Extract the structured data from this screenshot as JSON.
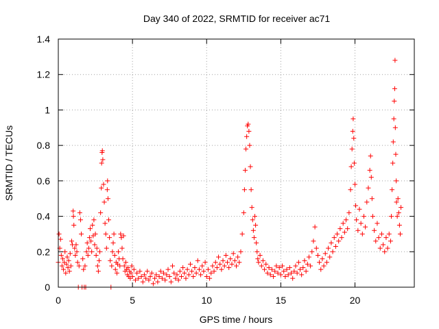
{
  "chart_data": {
    "type": "scatter",
    "title": "Day 340 of 2022, SRMTID for receiver ac71",
    "xlabel": "GPS time / hours",
    "ylabel": "SRMTID / TECUs",
    "xlim": [
      0,
      24
    ],
    "ylim": [
      0,
      1.4
    ],
    "xticks": [
      0,
      5,
      10,
      15,
      20
    ],
    "yticks": [
      0,
      0.2,
      0.4,
      0.6,
      0.8,
      1,
      1.2,
      1.4
    ],
    "xtick_labels": [
      "0",
      "5",
      "10",
      "15",
      "20"
    ],
    "ytick_labels": [
      "0",
      "0.2",
      "0.4",
      "0.6",
      "0.8",
      "1",
      "1.2",
      "1.4"
    ],
    "grid": true,
    "marker": "+",
    "color": "#ff0000",
    "series": [
      {
        "name": "SRMTID",
        "points": [
          [
            0.0,
            0.14
          ],
          [
            0.05,
            0.3
          ],
          [
            0.1,
            0.22
          ],
          [
            0.15,
            0.27
          ],
          [
            0.2,
            0.18
          ],
          [
            0.25,
            0.12
          ],
          [
            0.3,
            0.16
          ],
          [
            0.35,
            0.1
          ],
          [
            0.4,
            0.14
          ],
          [
            0.45,
            0.2
          ],
          [
            0.5,
            0.08
          ],
          [
            0.55,
            0.13
          ],
          [
            0.6,
            0.17
          ],
          [
            0.65,
            0.11
          ],
          [
            0.7,
            0.15
          ],
          [
            0.75,
            0.09
          ],
          [
            0.8,
            0.19
          ],
          [
            0.85,
            0.12
          ],
          [
            0.9,
            0.26
          ],
          [
            0.95,
            0.24
          ],
          [
            1.0,
            0.43
          ],
          [
            1.02,
            0.4
          ],
          [
            1.05,
            0.35
          ],
          [
            1.1,
            0.22
          ],
          [
            1.15,
            0.18
          ],
          [
            1.2,
            0.24
          ],
          [
            1.25,
            0.2
          ],
          [
            1.3,
            0.14
          ],
          [
            1.35,
            0.0
          ],
          [
            1.4,
            0.12
          ],
          [
            1.45,
            0.42
          ],
          [
            1.5,
            0.38
          ],
          [
            1.55,
            0.3
          ],
          [
            1.6,
            0.0
          ],
          [
            1.65,
            0.16
          ],
          [
            1.7,
            0.1
          ],
          [
            1.75,
            0.0
          ],
          [
            1.8,
            0.12
          ],
          [
            1.85,
            0.0
          ],
          [
            1.9,
            0.2
          ],
          [
            1.95,
            0.25
          ],
          [
            2.0,
            0.18
          ],
          [
            2.05,
            0.22
          ],
          [
            2.1,
            0.28
          ],
          [
            2.15,
            0.33
          ],
          [
            2.2,
            0.26
          ],
          [
            2.25,
            0.2
          ],
          [
            2.3,
            0.35
          ],
          [
            2.35,
            0.29
          ],
          [
            2.4,
            0.38
          ],
          [
            2.45,
            0.24
          ],
          [
            2.5,
            0.3
          ],
          [
            2.55,
            0.18
          ],
          [
            2.6,
            0.22
          ],
          [
            2.65,
            0.12
          ],
          [
            2.7,
            0.09
          ],
          [
            2.75,
            0.15
          ],
          [
            2.8,
            0.2
          ],
          [
            2.85,
            0.42
          ],
          [
            2.9,
            0.56
          ],
          [
            2.92,
            0.7
          ],
          [
            2.95,
            0.76
          ],
          [
            2.97,
            0.77
          ],
          [
            3.0,
            0.72
          ],
          [
            3.05,
            0.58
          ],
          [
            3.1,
            0.48
          ],
          [
            3.15,
            0.36
          ],
          [
            3.2,
            0.3
          ],
          [
            3.25,
            0.22
          ],
          [
            3.3,
            0.55
          ],
          [
            3.32,
            0.6
          ],
          [
            3.35,
            0.5
          ],
          [
            3.4,
            0.38
          ],
          [
            3.45,
            0.28
          ],
          [
            3.5,
            0.15
          ],
          [
            3.55,
            0.0
          ],
          [
            3.6,
            0.12
          ],
          [
            3.65,
            0.2
          ],
          [
            3.7,
            0.25
          ],
          [
            3.75,
            0.3
          ],
          [
            3.8,
            0.18
          ],
          [
            3.85,
            0.1
          ],
          [
            3.9,
            0.14
          ],
          [
            3.95,
            0.08
          ],
          [
            4.0,
            0.13
          ],
          [
            4.05,
            0.2
          ],
          [
            4.1,
            0.16
          ],
          [
            4.15,
            0.12
          ],
          [
            4.2,
            0.3
          ],
          [
            4.25,
            0.28
          ],
          [
            4.3,
            0.22
          ],
          [
            4.35,
            0.16
          ],
          [
            4.4,
            0.29
          ],
          [
            4.45,
            0.12
          ],
          [
            4.5,
            0.09
          ],
          [
            4.55,
            0.14
          ],
          [
            4.6,
            0.1
          ],
          [
            4.65,
            0.07
          ],
          [
            4.7,
            0.11
          ],
          [
            4.75,
            0.06
          ],
          [
            4.8,
            0.09
          ],
          [
            4.85,
            0.05
          ],
          [
            4.9,
            0.08
          ],
          [
            4.95,
            0.12
          ],
          [
            5.0,
            0.06
          ],
          [
            5.1,
            0.1
          ],
          [
            5.2,
            0.04
          ],
          [
            5.3,
            0.08
          ],
          [
            5.4,
            0.05
          ],
          [
            5.5,
            0.09
          ],
          [
            5.6,
            0.06
          ],
          [
            5.7,
            0.03
          ],
          [
            5.8,
            0.07
          ],
          [
            5.9,
            0.05
          ],
          [
            6.0,
            0.09
          ],
          [
            6.1,
            0.04
          ],
          [
            6.2,
            0.06
          ],
          [
            6.3,
            0.08
          ],
          [
            6.4,
            0.02
          ],
          [
            6.5,
            0.05
          ],
          [
            6.6,
            0.07
          ],
          [
            6.7,
            0.03
          ],
          [
            6.8,
            0.06
          ],
          [
            6.9,
            0.09
          ],
          [
            7.0,
            0.05
          ],
          [
            7.1,
            0.08
          ],
          [
            7.2,
            0.04
          ],
          [
            7.3,
            0.07
          ],
          [
            7.4,
            0.1
          ],
          [
            7.5,
            0.06
          ],
          [
            7.6,
            0.03
          ],
          [
            7.7,
            0.12
          ],
          [
            7.8,
            0.08
          ],
          [
            7.9,
            0.05
          ],
          [
            8.0,
            0.07
          ],
          [
            8.1,
            0.04
          ],
          [
            8.2,
            0.09
          ],
          [
            8.3,
            0.06
          ],
          [
            8.4,
            0.11
          ],
          [
            8.5,
            0.08
          ],
          [
            8.6,
            0.05
          ],
          [
            8.7,
            0.1
          ],
          [
            8.8,
            0.07
          ],
          [
            8.9,
            0.13
          ],
          [
            9.0,
            0.09
          ],
          [
            9.1,
            0.06
          ],
          [
            9.2,
            0.11
          ],
          [
            9.3,
            0.08
          ],
          [
            9.4,
            0.15
          ],
          [
            9.5,
            0.1
          ],
          [
            9.6,
            0.07
          ],
          [
            9.7,
            0.12
          ],
          [
            9.8,
            0.09
          ],
          [
            9.9,
            0.14
          ],
          [
            10.0,
            0.06
          ],
          [
            10.1,
            0.1
          ],
          [
            10.2,
            0.05
          ],
          [
            10.3,
            0.08
          ],
          [
            10.4,
            0.12
          ],
          [
            10.5,
            0.09
          ],
          [
            10.6,
            0.14
          ],
          [
            10.7,
            0.11
          ],
          [
            10.8,
            0.17
          ],
          [
            10.9,
            0.13
          ],
          [
            11.0,
            0.1
          ],
          [
            11.1,
            0.15
          ],
          [
            11.2,
            0.12
          ],
          [
            11.3,
            0.18
          ],
          [
            11.4,
            0.14
          ],
          [
            11.5,
            0.11
          ],
          [
            11.6,
            0.16
          ],
          [
            11.7,
            0.13
          ],
          [
            11.8,
            0.19
          ],
          [
            11.9,
            0.15
          ],
          [
            12.0,
            0.12
          ],
          [
            12.1,
            0.17
          ],
          [
            12.2,
            0.14
          ],
          [
            12.3,
            0.2
          ],
          [
            12.4,
            0.3
          ],
          [
            12.5,
            0.42
          ],
          [
            12.55,
            0.55
          ],
          [
            12.6,
            0.66
          ],
          [
            12.65,
            0.78
          ],
          [
            12.7,
            0.85
          ],
          [
            12.75,
            0.91
          ],
          [
            12.8,
            0.92
          ],
          [
            12.85,
            0.88
          ],
          [
            12.9,
            0.8
          ],
          [
            12.95,
            0.68
          ],
          [
            13.0,
            0.55
          ],
          [
            13.05,
            0.45
          ],
          [
            13.1,
            0.38
          ],
          [
            13.15,
            0.32
          ],
          [
            13.2,
            0.28
          ],
          [
            13.25,
            0.4
          ],
          [
            13.3,
            0.35
          ],
          [
            13.35,
            0.25
          ],
          [
            13.4,
            0.2
          ],
          [
            13.45,
            0.16
          ],
          [
            13.5,
            0.14
          ],
          [
            13.6,
            0.18
          ],
          [
            13.7,
            0.12
          ],
          [
            13.8,
            0.15
          ],
          [
            13.9,
            0.1
          ],
          [
            14.0,
            0.13
          ],
          [
            14.1,
            0.08
          ],
          [
            14.2,
            0.11
          ],
          [
            14.3,
            0.07
          ],
          [
            14.4,
            0.1
          ],
          [
            14.5,
            0.06
          ],
          [
            14.6,
            0.09
          ],
          [
            14.7,
            0.12
          ],
          [
            14.8,
            0.08
          ],
          [
            14.9,
            0.11
          ],
          [
            15.0,
            0.07
          ],
          [
            15.1,
            0.12
          ],
          [
            15.2,
            0.09
          ],
          [
            15.3,
            0.06
          ],
          [
            15.4,
            0.1
          ],
          [
            15.5,
            0.07
          ],
          [
            15.6,
            0.11
          ],
          [
            15.7,
            0.08
          ],
          [
            15.8,
            0.05
          ],
          [
            15.9,
            0.09
          ],
          [
            16.0,
            0.12
          ],
          [
            16.1,
            0.08
          ],
          [
            16.2,
            0.14
          ],
          [
            16.3,
            0.1
          ],
          [
            16.4,
            0.07
          ],
          [
            16.5,
            0.11
          ],
          [
            16.6,
            0.15
          ],
          [
            16.7,
            0.09
          ],
          [
            16.8,
            0.13
          ],
          [
            16.9,
            0.17
          ],
          [
            17.0,
            0.12
          ],
          [
            17.1,
            0.2
          ],
          [
            17.2,
            0.26
          ],
          [
            17.3,
            0.34
          ],
          [
            17.4,
            0.22
          ],
          [
            17.5,
            0.18
          ],
          [
            17.6,
            0.14
          ],
          [
            17.7,
            0.1
          ],
          [
            17.8,
            0.16
          ],
          [
            17.9,
            0.12
          ],
          [
            18.0,
            0.19
          ],
          [
            18.1,
            0.14
          ],
          [
            18.2,
            0.22
          ],
          [
            18.3,
            0.17
          ],
          [
            18.4,
            0.25
          ],
          [
            18.5,
            0.2
          ],
          [
            18.6,
            0.28
          ],
          [
            18.7,
            0.23
          ],
          [
            18.8,
            0.3
          ],
          [
            18.9,
            0.26
          ],
          [
            19.0,
            0.33
          ],
          [
            19.1,
            0.28
          ],
          [
            19.2,
            0.36
          ],
          [
            19.3,
            0.31
          ],
          [
            19.4,
            0.38
          ],
          [
            19.5,
            0.33
          ],
          [
            19.6,
            0.42
          ],
          [
            19.7,
            0.55
          ],
          [
            19.75,
            0.68
          ],
          [
            19.8,
            0.78
          ],
          [
            19.85,
            0.88
          ],
          [
            19.88,
            0.95
          ],
          [
            19.92,
            0.84
          ],
          [
            19.95,
            0.7
          ],
          [
            20.0,
            0.58
          ],
          [
            20.05,
            0.46
          ],
          [
            20.1,
            0.38
          ],
          [
            20.2,
            0.32
          ],
          [
            20.3,
            0.44
          ],
          [
            20.4,
            0.36
          ],
          [
            20.5,
            0.3
          ],
          [
            20.6,
            0.4
          ],
          [
            20.7,
            0.34
          ],
          [
            20.8,
            0.48
          ],
          [
            20.9,
            0.56
          ],
          [
            21.0,
            0.66
          ],
          [
            21.05,
            0.74
          ],
          [
            21.1,
            0.62
          ],
          [
            21.15,
            0.5
          ],
          [
            21.2,
            0.4
          ],
          [
            21.3,
            0.32
          ],
          [
            21.4,
            0.26
          ],
          [
            21.5,
            0.36
          ],
          [
            21.6,
            0.28
          ],
          [
            21.7,
            0.22
          ],
          [
            21.8,
            0.3
          ],
          [
            21.9,
            0.24
          ],
          [
            22.0,
            0.2
          ],
          [
            22.1,
            0.28
          ],
          [
            22.2,
            0.22
          ],
          [
            22.3,
            0.3
          ],
          [
            22.4,
            0.26
          ],
          [
            22.45,
            0.4
          ],
          [
            22.5,
            0.55
          ],
          [
            22.55,
            0.7
          ],
          [
            22.58,
            0.82
          ],
          [
            22.62,
            0.95
          ],
          [
            22.65,
            1.05
          ],
          [
            22.68,
            1.12
          ],
          [
            22.7,
            1.28
          ],
          [
            22.72,
            0.9
          ],
          [
            22.75,
            0.75
          ],
          [
            22.78,
            0.6
          ],
          [
            22.8,
            0.48
          ],
          [
            22.85,
            0.4
          ],
          [
            22.9,
            0.5
          ],
          [
            22.95,
            0.42
          ],
          [
            23.0,
            0.35
          ],
          [
            23.05,
            0.3
          ],
          [
            23.1,
            0.45
          ]
        ]
      }
    ]
  }
}
